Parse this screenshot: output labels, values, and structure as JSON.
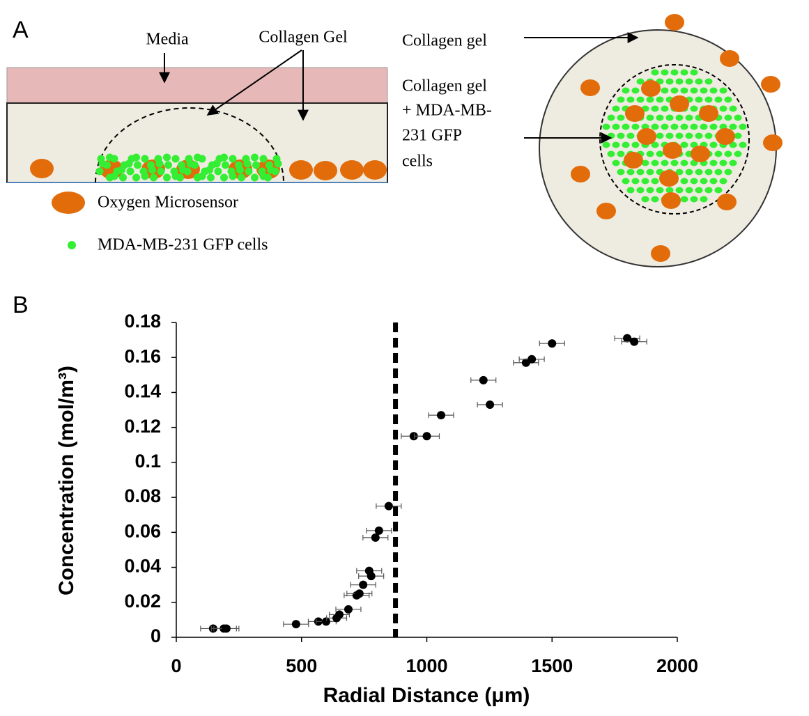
{
  "panels": {
    "a": "A",
    "b": "B"
  },
  "diagram": {
    "side_view": {
      "media": "Media",
      "collagen_gel": "Collagen Gel"
    },
    "top_view": {
      "collagen_gel": "Collagen gel",
      "core_label": [
        "Collagen gel",
        "+ MDA-MB-",
        "231 GFP",
        "cells"
      ]
    },
    "legend": {
      "sensor": "Oxygen Microsensor",
      "cells": "MDA-MB-231 GFP cells"
    }
  },
  "chart_data": {
    "type": "scatter",
    "xlabel": "Radial Distance (μm)",
    "ylabel": "Concentration (mol/m³)",
    "x": [
      147,
      190,
      200,
      478,
      567,
      598,
      640,
      651,
      687,
      720,
      731,
      746,
      770,
      778,
      795,
      809,
      848,
      948,
      1000,
      1057,
      1226,
      1252,
      1396,
      1419,
      1500,
      1800,
      1828
    ],
    "values": [
      0.005,
      0.005,
      0.005,
      0.0075,
      0.009,
      0.009,
      0.011,
      0.013,
      0.016,
      0.024,
      0.025,
      0.03,
      0.038,
      0.035,
      0.057,
      0.061,
      0.075,
      0.115,
      0.115,
      0.127,
      0.147,
      0.133,
      0.157,
      0.159,
      0.168,
      0.171,
      0.169
    ],
    "x_error": [
      50,
      50,
      50,
      50,
      40,
      40,
      40,
      40,
      50,
      50,
      50,
      50,
      50,
      50,
      50,
      50,
      50,
      50,
      50,
      50,
      50,
      50,
      50,
      50,
      50,
      50,
      50
    ],
    "color": "#000000",
    "error_color": "#555555",
    "vline": 875,
    "vline_color": "#000000",
    "xlim": [
      0,
      2000
    ],
    "xticks": [
      0,
      500,
      1000,
      1500,
      2000
    ],
    "ylim": [
      0,
      0.18
    ],
    "yticks": [
      0,
      0.02,
      0.04,
      0.06,
      0.08,
      0.1,
      0.12,
      0.14,
      0.16,
      0.18
    ]
  }
}
